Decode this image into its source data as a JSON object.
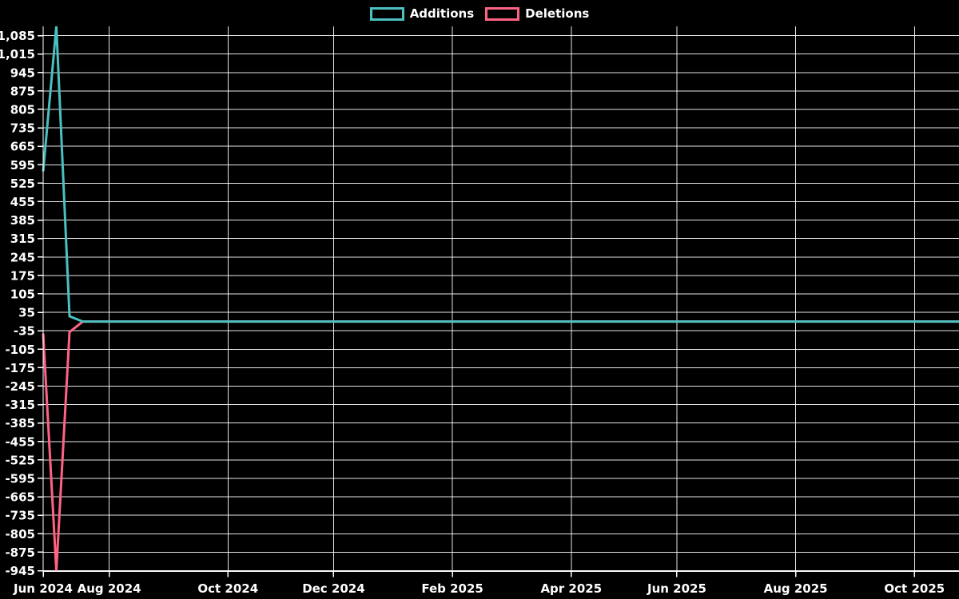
{
  "colors": {
    "background": "#000000",
    "text": "#ffffff",
    "grid": "#ffffff",
    "additions": "#4bc0c0",
    "deletions": "#ff6384"
  },
  "legend": {
    "items": [
      {
        "label": "Additions",
        "color": "#4bc0c0"
      },
      {
        "label": "Deletions",
        "color": "#ff6384"
      }
    ]
  },
  "chart_data": {
    "type": "line",
    "title": "",
    "xlabel": "",
    "ylabel": "",
    "x_unit": "week",
    "legend_position": "top",
    "grid": true,
    "point_markers": false,
    "line_width": 3,
    "ylim": [
      -945,
      1120
    ],
    "y_tick_step": 70,
    "y_tick_values": [
      1085,
      1015,
      945,
      875,
      805,
      735,
      665,
      595,
      525,
      455,
      385,
      315,
      245,
      175,
      105,
      35,
      -35,
      -105,
      -175,
      -245,
      -315,
      -385,
      -455,
      -525,
      -595,
      -665,
      -735,
      -805,
      -875,
      -945
    ],
    "y_tick_labels": [
      "1,085",
      "1,015",
      "945",
      "875",
      "805",
      "735",
      "665",
      "595",
      "525",
      "455",
      "385",
      "315",
      "245",
      "175",
      "105",
      "35",
      "-35",
      "-105",
      "-175",
      "-245",
      "-315",
      "-385",
      "-455",
      "-525",
      "-595",
      "-665",
      "-735",
      "-805",
      "-875",
      "-945"
    ],
    "x_tick_weeks": [
      0,
      5,
      14,
      22,
      31,
      40,
      48,
      57,
      66
    ],
    "x_tick_labels": [
      "Jun 2024",
      "Aug 2024",
      "Oct 2024",
      "Dec 2024",
      "Feb 2025",
      "Apr 2025",
      "Jun 2025",
      "Aug 2025",
      "Oct 2025"
    ],
    "series": [
      {
        "name": "Additions",
        "color": "#4bc0c0",
        "values": [
          570,
          1120,
          20,
          0,
          0,
          0,
          0,
          0,
          0,
          0,
          0,
          0,
          0,
          0,
          0,
          0,
          0,
          0,
          0,
          0,
          0,
          0,
          0,
          0,
          0,
          0,
          0,
          0,
          0,
          0,
          0,
          0,
          0,
          0,
          0,
          0,
          0,
          0,
          0,
          0,
          0,
          0,
          0,
          0,
          0,
          0,
          0,
          0,
          0,
          0,
          0,
          0,
          0,
          0,
          0,
          0,
          0,
          0,
          0,
          0,
          0,
          0,
          0,
          0,
          0,
          0,
          0,
          0,
          0,
          0,
          0
        ]
      },
      {
        "name": "Deletions",
        "color": "#ff6384",
        "values": [
          -45,
          -945,
          -40,
          0,
          0,
          0,
          0,
          0,
          0,
          0,
          0,
          0,
          0,
          0,
          0,
          0,
          0,
          0,
          0,
          0,
          0,
          0,
          0,
          0,
          0,
          0,
          0,
          0,
          0,
          0,
          0,
          0,
          0,
          0,
          0,
          0,
          0,
          0,
          0,
          0,
          0,
          0,
          0,
          0,
          0,
          0,
          0,
          0,
          0,
          0,
          0,
          0,
          0,
          0,
          0,
          0,
          0,
          0,
          0,
          0,
          0,
          0,
          0,
          0,
          0,
          0,
          0,
          0,
          0,
          0,
          0
        ]
      }
    ]
  }
}
